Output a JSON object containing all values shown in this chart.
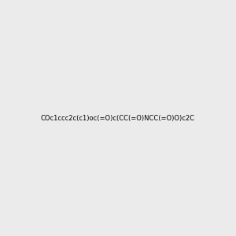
{
  "smiles": "COc1ccc2c(c1)oc(=O)c(CC(=O)NCC(=O)O)c2C",
  "title": "",
  "background_color": "#ebebeb",
  "img_size": [
    300,
    300
  ]
}
